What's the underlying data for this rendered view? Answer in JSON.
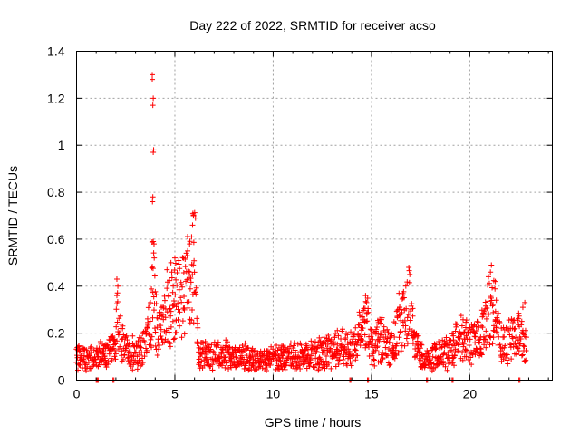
{
  "chart_data": {
    "type": "scatter",
    "title": "Day 222 of 2022, SRMTID for receiver acso",
    "xlabel": "GPS time / hours",
    "ylabel": "SRMTID / TECUs",
    "xlim": [
      0,
      24.2
    ],
    "ylim": [
      0,
      1.4
    ],
    "xticks": [
      0,
      5,
      10,
      15,
      20
    ],
    "yticks": [
      0,
      0.2,
      0.4,
      0.6,
      0.8,
      1,
      1.2,
      1.4
    ],
    "grid": true,
    "marker": "+",
    "color": "#ff0000",
    "envelope": [
      [
        0.0,
        0.12
      ],
      [
        0.5,
        0.1
      ],
      [
        1.0,
        0.11
      ],
      [
        1.5,
        0.12
      ],
      [
        2.0,
        0.18
      ],
      [
        2.1,
        0.32
      ],
      [
        2.4,
        0.16
      ],
      [
        3.0,
        0.12
      ],
      [
        3.5,
        0.16
      ],
      [
        3.8,
        0.3
      ],
      [
        3.9,
        0.6
      ],
      [
        4.1,
        0.2
      ],
      [
        4.5,
        0.3
      ],
      [
        5.0,
        0.38
      ],
      [
        5.5,
        0.4
      ],
      [
        5.8,
        0.5
      ],
      [
        6.0,
        0.55
      ],
      [
        6.2,
        0.12
      ],
      [
        7.0,
        0.12
      ],
      [
        8.0,
        0.11
      ],
      [
        9.0,
        0.1
      ],
      [
        10.0,
        0.1
      ],
      [
        11.0,
        0.11
      ],
      [
        12.0,
        0.12
      ],
      [
        13.0,
        0.14
      ],
      [
        14.0,
        0.16
      ],
      [
        14.5,
        0.22
      ],
      [
        14.8,
        0.28
      ],
      [
        15.0,
        0.14
      ],
      [
        15.5,
        0.2
      ],
      [
        16.0,
        0.15
      ],
      [
        16.5,
        0.25
      ],
      [
        16.9,
        0.38
      ],
      [
        17.2,
        0.18
      ],
      [
        17.6,
        0.09
      ],
      [
        18.0,
        0.1
      ],
      [
        18.5,
        0.12
      ],
      [
        19.0,
        0.14
      ],
      [
        19.5,
        0.2
      ],
      [
        20.0,
        0.18
      ],
      [
        20.5,
        0.18
      ],
      [
        21.0,
        0.35
      ],
      [
        21.3,
        0.3
      ],
      [
        21.6,
        0.16
      ],
      [
        22.0,
        0.18
      ],
      [
        22.5,
        0.22
      ],
      [
        22.9,
        0.16
      ]
    ],
    "highlights": [
      [
        3.85,
        1.3
      ],
      [
        3.85,
        1.28
      ],
      [
        3.9,
        1.2
      ],
      [
        3.88,
        1.17
      ],
      [
        3.92,
        0.98
      ],
      [
        3.9,
        0.97
      ],
      [
        3.88,
        0.78
      ],
      [
        3.86,
        0.76
      ],
      [
        3.9,
        0.59
      ],
      [
        3.94,
        0.58
      ],
      [
        3.95,
        0.52
      ],
      [
        5.95,
        0.7
      ],
      [
        6.05,
        0.69
      ],
      [
        5.9,
        0.66
      ],
      [
        5.85,
        0.61
      ],
      [
        5.75,
        0.58
      ],
      [
        5.65,
        0.55
      ],
      [
        5.0,
        0.52
      ],
      [
        4.8,
        0.5
      ],
      [
        4.6,
        0.47
      ],
      [
        2.05,
        0.43
      ],
      [
        2.1,
        0.4
      ],
      [
        2.05,
        0.36
      ],
      [
        16.9,
        0.48
      ],
      [
        16.95,
        0.45
      ],
      [
        16.4,
        0.37
      ],
      [
        16.6,
        0.35
      ],
      [
        14.7,
        0.36
      ],
      [
        14.75,
        0.33
      ],
      [
        21.1,
        0.49
      ],
      [
        21.05,
        0.46
      ],
      [
        20.95,
        0.44
      ],
      [
        21.3,
        0.42
      ],
      [
        22.8,
        0.33
      ],
      [
        22.7,
        0.31
      ]
    ],
    "baseline_markers": [
      1.0,
      1.05,
      1.85,
      13.9,
      14.8,
      17.8,
      19.1,
      22.5
    ]
  }
}
